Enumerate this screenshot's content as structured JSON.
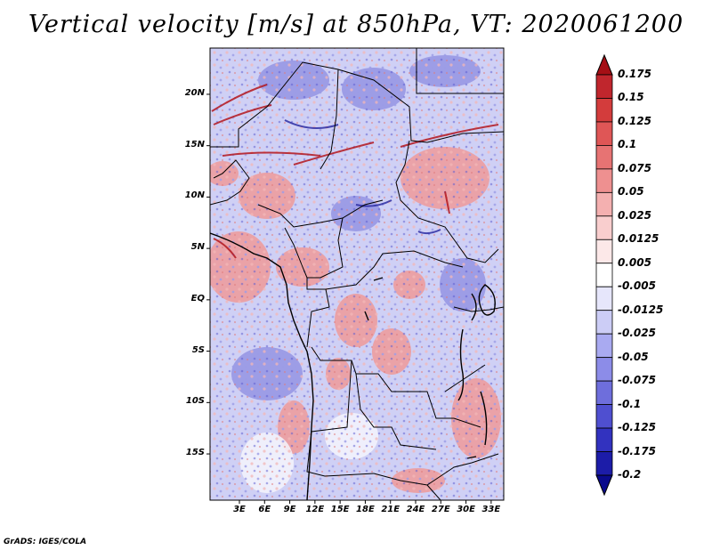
{
  "title": "Vertical velocity [m/s] at 850hPa, VT: 2020061200",
  "footer": "GrADS: IGES/COLA",
  "map": {
    "lat_range": [
      -19.5,
      24.5
    ],
    "lon_range": [
      -0.5,
      34.5
    ],
    "lat_ticks": [
      {
        "label": "20N",
        "value": 20
      },
      {
        "label": "15N",
        "value": 15
      },
      {
        "label": "10N",
        "value": 10
      },
      {
        "label": "5N",
        "value": 5
      },
      {
        "label": "EQ",
        "value": 0
      },
      {
        "label": "5S",
        "value": -5
      },
      {
        "label": "10S",
        "value": -10
      },
      {
        "label": "15S",
        "value": -15
      }
    ],
    "lon_ticks": [
      {
        "label": "3E",
        "value": 3
      },
      {
        "label": "6E",
        "value": 6
      },
      {
        "label": "9E",
        "value": 9
      },
      {
        "label": "12E",
        "value": 12
      },
      {
        "label": "15E",
        "value": 15
      },
      {
        "label": "18E",
        "value": 18
      },
      {
        "label": "21E",
        "value": 21
      },
      {
        "label": "24E",
        "value": 24
      },
      {
        "label": "27E",
        "value": 27
      },
      {
        "label": "30E",
        "value": 30
      },
      {
        "label": "33E",
        "value": 33
      }
    ]
  },
  "colorbar": {
    "levels": [
      "0.175",
      "0.15",
      "0.125",
      "0.1",
      "0.075",
      "0.05",
      "0.025",
      "0.0125",
      "0.005",
      "-0.005",
      "-0.0125",
      "-0.025",
      "-0.05",
      "-0.075",
      "-0.1",
      "-0.125",
      "-0.175",
      "-0.2"
    ],
    "colors": [
      "#a50f15",
      "#c0262d",
      "#d33c3c",
      "#df5656",
      "#e77373",
      "#ee9090",
      "#f4b0b0",
      "#f9cece",
      "#fce8e8",
      "#ffffff",
      "#e6e6fb",
      "#cccdf6",
      "#a9aaf1",
      "#8c8ce8",
      "#6e6edc",
      "#4f4fd0",
      "#3232bf",
      "#1c1ca8",
      "#0a0a8c"
    ]
  }
}
